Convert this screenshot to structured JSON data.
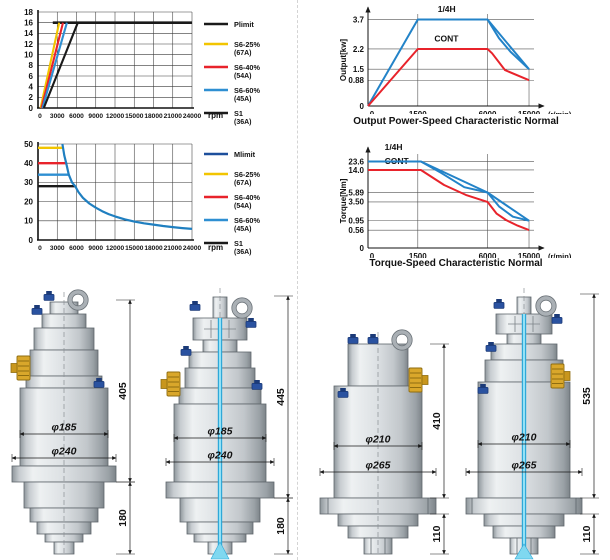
{
  "page": {
    "background": "#ffffff",
    "divider_color": "#d4d4d4"
  },
  "chart_data": [
    {
      "id": "power-limit-chart",
      "type": "line",
      "xlabel": "rpm",
      "xlim": [
        0,
        24000
      ],
      "ylim": [
        0,
        18
      ],
      "x_ticks": [
        0,
        3000,
        6000,
        9000,
        12000,
        15000,
        18000,
        21000,
        24000
      ],
      "y_ticks": [
        0,
        2,
        4,
        6,
        8,
        10,
        12,
        14,
        16,
        18
      ],
      "grid": true,
      "legend_position": "right",
      "legend": [
        {
          "label": "Plimit",
          "sub": "",
          "color": "#1a1a1a"
        },
        {
          "label": "S6-25%",
          "sub": "(67A)",
          "color": "#f2c500"
        },
        {
          "label": "S6-40%",
          "sub": "(54A)",
          "color": "#e8232b"
        },
        {
          "label": "S6-60%",
          "sub": "(45A)",
          "color": "#2e8fd2"
        },
        {
          "label": "S1",
          "sub": "(36A)",
          "color": "#1a1a1a"
        }
      ],
      "series": [
        {
          "name": "Plimit",
          "color": "#1a1a1a",
          "width": 2.6,
          "points": [
            [
              2300,
              16
            ],
            [
              24000,
              16
            ]
          ]
        },
        {
          "name": "S6-25%",
          "color": "#f2c500",
          "width": 2.1,
          "points": [
            [
              400,
              0
            ],
            [
              3300,
              16
            ]
          ]
        },
        {
          "name": "S6-40%",
          "color": "#e8232b",
          "width": 2.1,
          "points": [
            [
              550,
              0
            ],
            [
              3900,
              16
            ]
          ]
        },
        {
          "name": "S6-60%",
          "color": "#2e8fd2",
          "width": 2.1,
          "points": [
            [
              700,
              0
            ],
            [
              4500,
              16
            ]
          ]
        },
        {
          "name": "S1",
          "color": "#1a1a1a",
          "width": 2.1,
          "points": [
            [
              900,
              0
            ],
            [
              6200,
              16
            ]
          ]
        }
      ]
    },
    {
      "id": "torque-limit-chart",
      "type": "line",
      "xlabel": "rpm",
      "xlim": [
        0,
        24000
      ],
      "ylim": [
        0,
        50
      ],
      "x_ticks": [
        0,
        3000,
        6000,
        9000,
        12000,
        15000,
        18000,
        21000,
        24000
      ],
      "y_ticks": [
        0,
        10,
        20,
        30,
        40,
        50
      ],
      "grid": true,
      "legend_position": "right",
      "legend": [
        {
          "label": "Mlimit",
          "sub": "",
          "color": "#1d4f9c"
        },
        {
          "label": "S6-25%",
          "sub": "(67A)",
          "color": "#f2c500"
        },
        {
          "label": "S6-40%",
          "sub": "(54A)",
          "color": "#e8232b"
        },
        {
          "label": "S6-60%",
          "sub": "(45A)",
          "color": "#2e8fd2"
        },
        {
          "label": "S1",
          "sub": "(36A)",
          "color": "#1a1a1a"
        }
      ],
      "series": [
        {
          "name": "S6-25%",
          "color": "#f2c500",
          "width": 2.4,
          "points": [
            [
              0,
              48
            ],
            [
              3900,
              48
            ]
          ]
        },
        {
          "name": "S6-40%",
          "color": "#e8232b",
          "width": 2.4,
          "points": [
            [
              0,
              40
            ],
            [
              4400,
              40
            ]
          ]
        },
        {
          "name": "S6-60%",
          "color": "#2e8fd2",
          "width": 2.4,
          "points": [
            [
              0,
              34
            ],
            [
              4800,
              34
            ]
          ]
        },
        {
          "name": "S1",
          "color": "#1a1a1a",
          "width": 2.4,
          "points": [
            [
              0,
              28
            ],
            [
              5800,
              28
            ]
          ]
        },
        {
          "name": "Mlimit",
          "color": "#1f7fc0",
          "width": 2.2,
          "points": [
            [
              3800,
              50
            ],
            [
              4100,
              44
            ],
            [
              4400,
              40
            ],
            [
              4800,
              34
            ],
            [
              5300,
              30
            ],
            [
              5800,
              28
            ],
            [
              6300,
              25
            ],
            [
              7000,
              22
            ],
            [
              8000,
              19
            ],
            [
              9000,
              16.8
            ],
            [
              10000,
              15
            ],
            [
              11000,
              13.5
            ],
            [
              12000,
              12.3
            ],
            [
              13500,
              10.8
            ],
            [
              15000,
              9.6
            ],
            [
              16500,
              8.7
            ],
            [
              18000,
              8
            ],
            [
              19500,
              7.3
            ],
            [
              21000,
              6.7
            ],
            [
              22500,
              6.2
            ],
            [
              24000,
              5.8
            ]
          ]
        }
      ]
    },
    {
      "id": "output-speed-chart",
      "type": "line",
      "title": "Output Power-Speed Characteristic Normal",
      "ylabel": "Output[kw]",
      "x_unit": "(r/min)",
      "x_ticks": [
        0,
        1500,
        6000,
        15000
      ],
      "y_ticks": [
        3.7,
        2.2,
        1.5,
        0.88,
        0
      ],
      "y_tick_labels": [
        "3.7",
        "2.2",
        "1.5",
        "0.88",
        "0"
      ],
      "x_anchors": [
        [
          0,
          0
        ],
        [
          1500,
          0.3
        ],
        [
          6000,
          0.72
        ],
        [
          15000,
          0.97
        ]
      ],
      "y_anchors": [
        [
          0,
          0
        ],
        [
          0.88,
          0.28
        ],
        [
          1.5,
          0.4
        ],
        [
          2.2,
          0.62
        ],
        [
          3.7,
          0.94
        ]
      ],
      "grid_v": [
        1500,
        6000
      ],
      "v_guides": [
        {
          "x": 15000,
          "to": 1.5
        }
      ],
      "annotations": [
        {
          "text": "1/4H",
          "xf": 0.42,
          "yf": -0.02,
          "color": "#111111"
        },
        {
          "text": "CONT",
          "xf": 0.4,
          "yf": 0.3,
          "color": "#111111"
        }
      ],
      "series": [
        {
          "name": "1/4H",
          "color": "#2383c8",
          "width": 2,
          "points": [
            [
              0,
              0
            ],
            [
              1500,
              3.7
            ],
            [
              6000,
              3.7
            ],
            [
              15000,
              1.5
            ]
          ]
        },
        {
          "name": "1/4H-decel",
          "color": "#2383c8",
          "width": 2,
          "points": [
            [
              6000,
              3.7
            ],
            [
              8500,
              2.75
            ],
            [
              11000,
              2.1
            ],
            [
              15000,
              1.5
            ]
          ]
        },
        {
          "name": "CONT",
          "color": "#e8232b",
          "width": 2,
          "points": [
            [
              0,
              0
            ],
            [
              1500,
              2.2
            ],
            [
              6000,
              2.2
            ],
            [
              7000,
              2.05
            ],
            [
              9800,
              1.45
            ],
            [
              15000,
              0.88
            ]
          ]
        }
      ]
    },
    {
      "id": "torque-speed-chart",
      "type": "line",
      "title": "Torque-Speed Characteristic Normal",
      "ylabel": "Torque[Nm]",
      "x_unit": "(r/min)",
      "x_ticks": [
        0,
        1500,
        6000,
        15000
      ],
      "y_ticks": [
        23.6,
        14.0,
        5.89,
        3.5,
        0.95,
        0.56,
        0
      ],
      "y_tick_labels": [
        "23.6",
        "14.0",
        "5.89",
        "3.50",
        "0.95",
        "0.56",
        "0"
      ],
      "x_anchors": [
        [
          0,
          0
        ],
        [
          1500,
          0.3
        ],
        [
          6000,
          0.72
        ],
        [
          15000,
          0.97
        ]
      ],
      "y_anchors": [
        [
          0,
          0
        ],
        [
          0.56,
          0.19
        ],
        [
          0.95,
          0.29
        ],
        [
          3.5,
          0.49
        ],
        [
          5.89,
          0.59
        ],
        [
          14,
          0.83
        ],
        [
          23.6,
          0.92
        ]
      ],
      "grid_v": [
        1500,
        6000
      ],
      "v_guides": [
        {
          "x": 15000,
          "to": 0.95
        }
      ],
      "annotations": [
        {
          "text": "1/4H",
          "xf": 0.1,
          "yf": -0.045,
          "color": "#111111"
        },
        {
          "text": "CONT",
          "xf": 0.1,
          "yf": 0.105,
          "color": "#111111"
        }
      ],
      "series": [
        {
          "name": "1/4H",
          "color": "#2383c8",
          "width": 2,
          "points": [
            [
              0,
              23.6
            ],
            [
              1700,
              23.6
            ],
            [
              6000,
              5.89
            ],
            [
              15000,
              0.95
            ]
          ]
        },
        {
          "name": "1/4H-mid",
          "color": "#2383c8",
          "width": 2,
          "points": [
            [
              1700,
              23.6
            ],
            [
              3000,
              13
            ],
            [
              4500,
              7.8
            ],
            [
              6000,
              5.89
            ]
          ]
        },
        {
          "name": "1/4H-decel",
          "color": "#2383c8",
          "width": 2,
          "points": [
            [
              6000,
              5.89
            ],
            [
              8500,
              2.9
            ],
            [
              11500,
              1.5
            ],
            [
              15000,
              0.95
            ]
          ]
        },
        {
          "name": "CONT",
          "color": "#e8232b",
          "width": 2,
          "points": [
            [
              0,
              14
            ],
            [
              1700,
              14
            ],
            [
              3200,
              8.6
            ],
            [
              4600,
              5.3
            ],
            [
              6000,
              3.5
            ],
            [
              8000,
              1.9
            ],
            [
              10000,
              1.05
            ],
            [
              12500,
              0.75
            ],
            [
              15000,
              0.56
            ]
          ]
        }
      ]
    }
  ],
  "drawings": [
    {
      "name": "spindle-a",
      "dia_inner": "φ185",
      "dia_outer": "φ240",
      "dim_upper": "405",
      "dim_lower": "180"
    },
    {
      "name": "spindle-b",
      "dia_inner": "φ185",
      "dia_outer": "φ240",
      "dim_upper": "445",
      "dim_lower": "180"
    },
    {
      "name": "spindle-c",
      "dia_inner": "φ210",
      "dia_outer": "φ265",
      "dim_upper": "410",
      "dim_lower": "110"
    },
    {
      "name": "spindle-d",
      "dia_inner": "φ210",
      "dia_outer": "φ265",
      "dim_upper": "535",
      "dim_lower": "110"
    }
  ],
  "colors": {
    "metal_stroke": "#5f666c",
    "plug_blue": "#2a52a0",
    "plug_blue_dark": "#1b3a78",
    "gold": "#d9a72b",
    "gold_dark": "#8f6d10",
    "coolant": "#2fa8d8",
    "coolant_light": "#9fe8fa",
    "dim_line": "#1a1a1a"
  }
}
